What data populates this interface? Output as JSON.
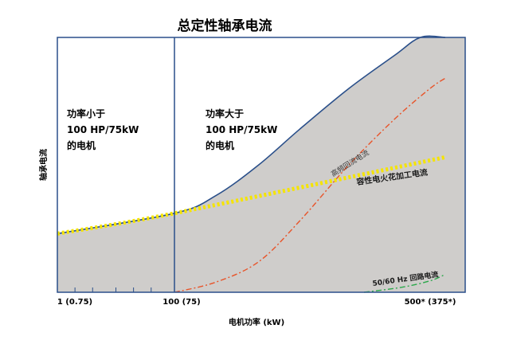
{
  "chart_data": {
    "type": "area",
    "title": "总定性轴承电流",
    "xlabel": "电机功率 (kW)",
    "ylabel": "轴承电流",
    "x_scale": "log",
    "x_tick_labels": [
      "1 (0.75)",
      "100 (75)",
      "500* (375*)"
    ],
    "grid": false,
    "regions": [
      {
        "label_lines": [
          "功率小于",
          "100 HP/75kW",
          "的电机"
        ]
      },
      {
        "label_lines": [
          "功率大于",
          "100 HP/75kW",
          "的电机"
        ]
      }
    ],
    "series": [
      {
        "name": "高频回流电流",
        "style": "dash-dot",
        "color": "#e8542a",
        "x_hp": [
          100,
          130,
          170,
          220,
          300,
          400,
          500,
          550
        ],
        "y_rel": [
          0.0,
          0.04,
          0.12,
          0.28,
          0.5,
          0.68,
          0.8,
          0.84
        ]
      },
      {
        "name": "容性电火花加工电流",
        "style": "dotted-thick",
        "color": "#f5e400",
        "x_hp": [
          1,
          100,
          550
        ],
        "y_rel": [
          0.23,
          0.31,
          0.53
        ]
      },
      {
        "name": "50/60 Hz 回路电流",
        "style": "dash-dot",
        "color": "#2aa84a",
        "x_hp": [
          330,
          420,
          500,
          550
        ],
        "y_rel": [
          0.0,
          0.02,
          0.045,
          0.07
        ]
      }
    ],
    "total_envelope": {
      "x_hp": [
        1,
        100,
        130,
        170,
        220,
        300,
        400,
        470,
        550
      ],
      "y_rel": [
        0.23,
        0.31,
        0.38,
        0.5,
        0.64,
        0.8,
        0.93,
        1.0,
        1.0
      ]
    },
    "colors": {
      "fill": "#cfcdcb",
      "border": "#2a4f8a",
      "text": "#1a1a1a"
    }
  }
}
